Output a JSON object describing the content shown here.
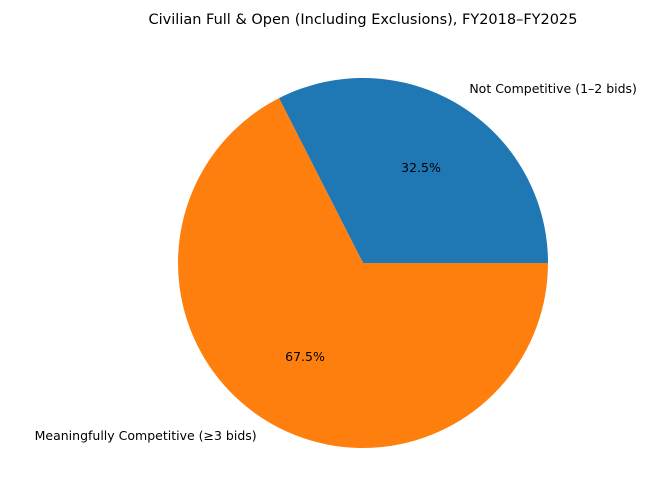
{
  "chart_data": {
    "type": "pie",
    "title": "Civilian Full & Open (Including Exclusions), FY2018–FY2025",
    "slices": [
      {
        "label": "Not Competitive (1–2 bids)",
        "value": 32.5,
        "display": "32.5%",
        "color": "#1f77b4"
      },
      {
        "label": "Meaningfully Competitive (≥3 bids)",
        "value": 67.5,
        "display": "67.5%",
        "color": "#ff7f0e"
      }
    ],
    "start_angle_deg": 0,
    "direction": "counterclockwise",
    "legend": "none"
  }
}
